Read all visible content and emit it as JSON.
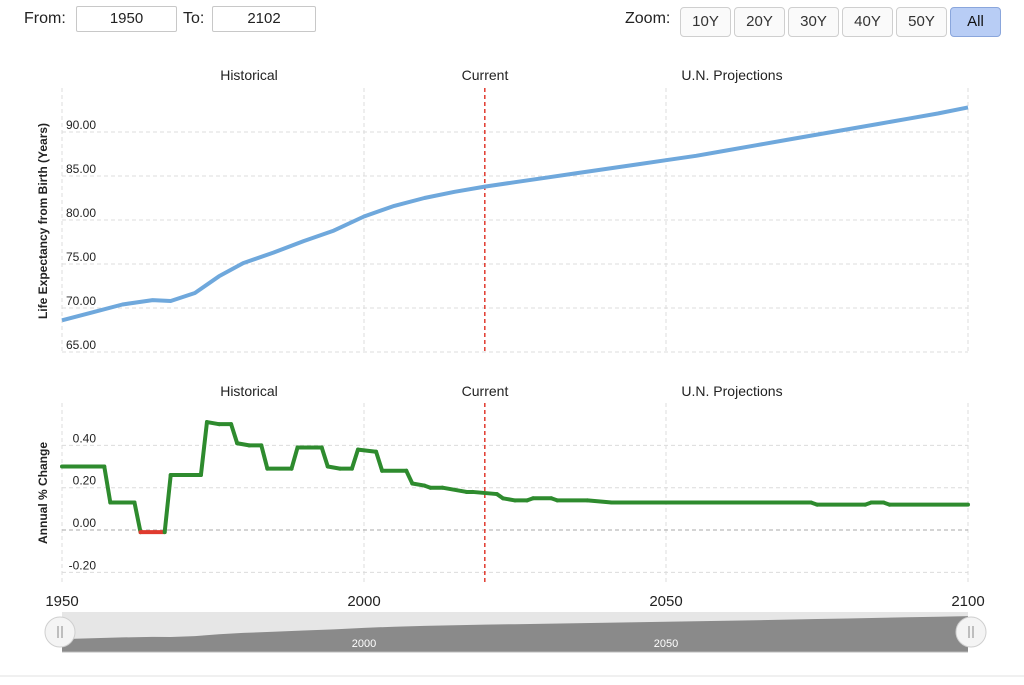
{
  "toolbar": {
    "from_label": "From:",
    "from_value": "1950",
    "to_label": "To:",
    "to_value": "2102",
    "zoom_label": "Zoom:",
    "zoom_buttons": [
      {
        "label": "10Y",
        "active": false
      },
      {
        "label": "20Y",
        "active": false
      },
      {
        "label": "30Y",
        "active": false
      },
      {
        "label": "40Y",
        "active": false
      },
      {
        "label": "50Y",
        "active": false
      },
      {
        "label": "All",
        "active": true
      }
    ]
  },
  "colors": {
    "life_line": "#6fa8dc",
    "change_positive": "#2e8b2e",
    "change_negative": "#e03a2e",
    "current_marker": "#e03a2e",
    "grid": "#dcdcdc"
  },
  "chart_data": [
    {
      "type": "line",
      "ylabel": "Life Expectancy from Birth (Years)",
      "ylim": [
        65,
        95
      ],
      "xlim": [
        1950,
        2100
      ],
      "yticks": [
        "65.00",
        "70.00",
        "75.00",
        "80.00",
        "85.00",
        "90.00"
      ],
      "region_labels": [
        "Historical",
        "Current",
        "U.N. Projections"
      ],
      "current_year": 2020,
      "grid": true,
      "x": [
        1950,
        1955,
        1960,
        1965,
        1968,
        1972,
        1976,
        1980,
        1985,
        1990,
        1995,
        2000,
        2005,
        2010,
        2015,
        2020,
        2025,
        2030,
        2035,
        2040,
        2045,
        2050,
        2055,
        2060,
        2065,
        2070,
        2075,
        2080,
        2085,
        2090,
        2095,
        2100
      ],
      "values": [
        68.6,
        69.5,
        70.4,
        70.9,
        70.8,
        71.7,
        73.6,
        75.1,
        76.3,
        77.6,
        78.8,
        80.4,
        81.6,
        82.5,
        83.2,
        83.8,
        84.3,
        84.8,
        85.3,
        85.8,
        86.3,
        86.8,
        87.3,
        87.9,
        88.5,
        89.1,
        89.7,
        90.3,
        90.9,
        91.5,
        92.1,
        92.8
      ]
    },
    {
      "type": "line",
      "ylabel": "Annual % Change",
      "ylim": [
        -0.25,
        0.6
      ],
      "xlim": [
        1950,
        2100
      ],
      "yticks": [
        "-0.20",
        "0.00",
        "0.20",
        "0.40"
      ],
      "xticks": [
        "1950",
        "2000",
        "2050",
        "2100"
      ],
      "region_labels": [
        "Historical",
        "Current",
        "U.N. Projections"
      ],
      "current_year": 2020,
      "grid": true,
      "x": [
        1950,
        1957,
        1958,
        1962,
        1963,
        1967,
        1968,
        1973,
        1974,
        1976,
        1978,
        1979,
        1981,
        1983,
        1984,
        1988,
        1989,
        1993,
        1994,
        1996,
        1998,
        1999,
        2002,
        2003,
        2007,
        2008,
        2010,
        2011,
        2013,
        2017,
        2018,
        2022,
        2023,
        2025,
        2027,
        2028,
        2031,
        2032,
        2037,
        2041,
        2050,
        2060,
        2074,
        2075,
        2083,
        2084,
        2086,
        2087,
        2100
      ],
      "values": [
        0.3,
        0.3,
        0.13,
        0.13,
        -0.01,
        -0.01,
        0.26,
        0.26,
        0.51,
        0.5,
        0.5,
        0.41,
        0.4,
        0.4,
        0.29,
        0.29,
        0.39,
        0.39,
        0.3,
        0.29,
        0.29,
        0.38,
        0.37,
        0.28,
        0.28,
        0.22,
        0.21,
        0.2,
        0.2,
        0.18,
        0.18,
        0.17,
        0.15,
        0.14,
        0.14,
        0.15,
        0.15,
        0.14,
        0.14,
        0.13,
        0.13,
        0.13,
        0.13,
        0.12,
        0.12,
        0.13,
        0.13,
        0.12,
        0.12
      ]
    }
  ],
  "navigator": {
    "labels": [
      "2000",
      "2050"
    ]
  }
}
